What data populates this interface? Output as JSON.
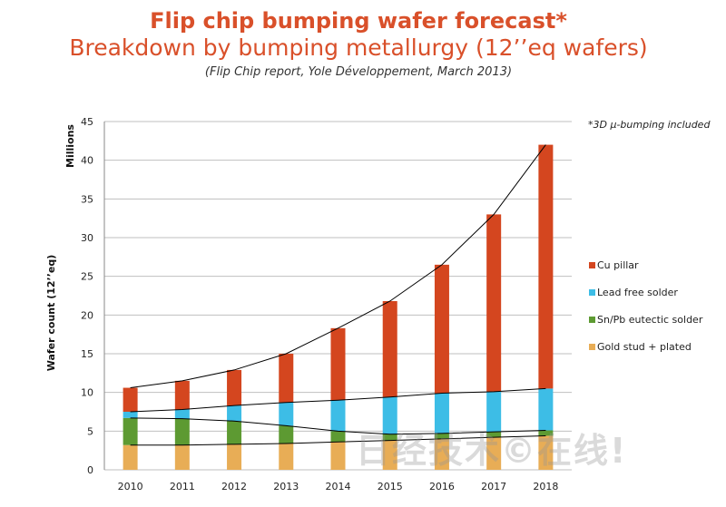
{
  "header": {
    "title": "Flip chip bumping wafer forecast*",
    "subtitle": "Breakdown by bumping metallurgy (12’’eq wafers)",
    "source": "(Flip Chip report, Yole Développement, March 2013)"
  },
  "note": "*3D µ-bumping included",
  "watermark": "日经技术©在线!",
  "chart_data": {
    "type": "bar",
    "stacked": true,
    "categories": [
      "2010",
      "2011",
      "2012",
      "2013",
      "2014",
      "2015",
      "2016",
      "2017",
      "2018"
    ],
    "series": [
      {
        "name": "Gold stud + plated",
        "color": "#e8ad56",
        "values": [
          3.2,
          3.2,
          3.3,
          3.4,
          3.6,
          3.8,
          4.0,
          4.2,
          4.4
        ]
      },
      {
        "name": "Sn/Pb eutectic solder",
        "color": "#5d9a32",
        "values": [
          3.5,
          3.4,
          3.0,
          2.3,
          1.4,
          0.8,
          0.7,
          0.7,
          0.7
        ]
      },
      {
        "name": "Lead free solder",
        "color": "#3dbde6",
        "values": [
          0.8,
          1.2,
          2.0,
          3.0,
          4.0,
          4.8,
          5.2,
          5.2,
          5.4
        ]
      },
      {
        "name": "Cu pillar",
        "color": "#d4461f",
        "values": [
          3.1,
          3.7,
          4.6,
          6.3,
          9.3,
          12.4,
          16.6,
          22.9,
          31.5
        ]
      }
    ],
    "ylim": [
      0,
      45
    ],
    "yticks": [
      "0",
      "5",
      "10",
      "15",
      "20",
      "25",
      "30",
      "35",
      "40",
      "45"
    ],
    "ylabel": "Wafer count (12’’eq)",
    "yunit": "Millions",
    "xlabel": "",
    "legend_order": [
      3,
      2,
      1,
      0
    ],
    "colors": {
      "title": "#d9502a",
      "grid": "#bfbfbf",
      "trend": "#000000"
    }
  }
}
